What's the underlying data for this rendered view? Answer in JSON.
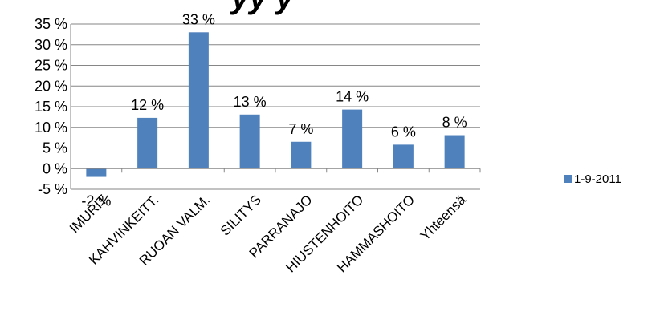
{
  "chart_data": {
    "type": "bar",
    "title_fragment": "yy          y",
    "categories": [
      "IMURIT",
      "KAHVINKEITT.",
      "RUOAN VALM.",
      "SILITYS",
      "PARRANAJO",
      "HIUSTENHOITO",
      "HAMMASHOITO",
      "Yhteensä"
    ],
    "series": [
      {
        "name": "1-9-2011",
        "values": [
          -2,
          12.3,
          33,
          13.1,
          6.5,
          14.3,
          5.8,
          8.1
        ],
        "labels": [
          "-2 %",
          "12 %",
          "33 %",
          "13 %",
          "7 %",
          "14 %",
          "6 %",
          "8 %"
        ],
        "color": "#4f81bd"
      }
    ],
    "ylim": [
      -5,
      35
    ],
    "yticks": [
      -5,
      0,
      5,
      10,
      15,
      20,
      25,
      30,
      35
    ],
    "ytick_labels": [
      "-5 %",
      "0 %",
      "5 %",
      "10 %",
      "15 %",
      "20 %",
      "25 %",
      "30 %",
      "35 %"
    ],
    "gridlines": true,
    "legend_position": "right",
    "xlabel": "",
    "ylabel": ""
  }
}
